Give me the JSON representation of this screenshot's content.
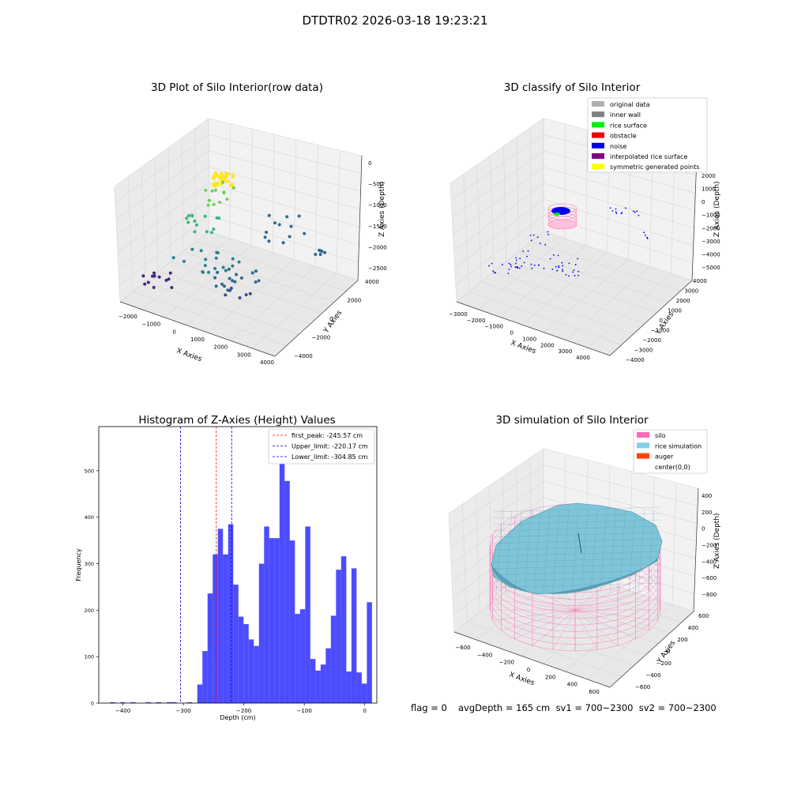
{
  "page": {
    "suptitle": "DTDTR02 2026-03-18 19:23:21"
  },
  "panels": {
    "raw": {
      "title": "3D Plot of Silo Interior(row data)",
      "xlabel": "X Axies",
      "ylabel": "Y Axies",
      "zlabel": "Z Axies (Depth)",
      "xticks": [
        "−2000",
        "−1000",
        "0",
        "1000",
        "2000",
        "3000",
        "4000"
      ],
      "yticks": [
        "−4000",
        "−2000",
        "0",
        "2000",
        "4000"
      ],
      "zticks": [
        "0",
        "−500",
        "−1000",
        "−1500",
        "−2000",
        "−2500"
      ]
    },
    "classify": {
      "title": "3D classify of Silo Interior",
      "xlabel": "X Axies",
      "ylabel": "Y Axies",
      "zlabel": "Z Axies (Depth)",
      "xticks": [
        "−3000",
        "−2000",
        "−1000",
        "0",
        "1000",
        "2000",
        "3000",
        "4000"
      ],
      "yticks": [
        "−4000",
        "−3000",
        "−2000",
        "−1000",
        "0",
        "1000",
        "2000",
        "3000",
        "4000"
      ],
      "zticks": [
        "2000",
        "1000",
        "0",
        "−1000",
        "−2000",
        "−3000",
        "−4000",
        "−5000"
      ],
      "legend": [
        {
          "label": "original data",
          "color": "#b0b0b0"
        },
        {
          "label": "inner wall",
          "color": "#808080"
        },
        {
          "label": "rice surface",
          "color": "#00ee00"
        },
        {
          "label": "obstacle",
          "color": "#ee0000"
        },
        {
          "label": "noise",
          "color": "#0000ee"
        },
        {
          "label": "interpolated rice surface",
          "color": "#800080"
        },
        {
          "label": "symmetric generated points",
          "color": "#ffff00"
        }
      ]
    },
    "simulation": {
      "title": "3D simulation of Silo Interior",
      "xlabel": "X Axies",
      "ylabel": "Y Axies",
      "zlabel": "Z Axies (Depth)",
      "xticks": [
        "−600",
        "−400",
        "−200",
        "0",
        "200",
        "400",
        "600"
      ],
      "yticks": [
        "−600",
        "−400",
        "−200",
        "0",
        "200",
        "400",
        "600"
      ],
      "zticks": [
        "400",
        "200",
        "0",
        "−200",
        "−400",
        "−600",
        "−800"
      ],
      "legend": [
        {
          "label": "silo",
          "color": "#ff69b4"
        },
        {
          "label": "rice simulation",
          "color": "#87ceeb"
        },
        {
          "label": "auger",
          "color": "#ff4500"
        },
        {
          "label": "center(0,0)",
          "color": ""
        }
      ]
    }
  },
  "chart_data": {
    "type": "bar",
    "title": "Histogram of Z-Axies (Height) Values",
    "xlabel": "Depth (cm)",
    "ylabel": "Frequency",
    "xlim": [
      -440,
      20
    ],
    "ylim": [
      0,
      595
    ],
    "xticks": [
      -400,
      -300,
      -200,
      -100,
      0
    ],
    "xtick_labels": [
      "−400",
      "−300",
      "−200",
      "−100",
      "0"
    ],
    "yticks": [
      0,
      100,
      200,
      300,
      400,
      500
    ],
    "bin_width": 8.5,
    "bin_edges_start": -430,
    "values": [
      0,
      2,
      0,
      2,
      0,
      2,
      0,
      0,
      2,
      0,
      2,
      0,
      2,
      2,
      0,
      0,
      2,
      0,
      40,
      112,
      236,
      320,
      375,
      320,
      385,
      255,
      186,
      170,
      137,
      123,
      300,
      380,
      355,
      355,
      566,
      478,
      350,
      192,
      202,
      380,
      95,
      70,
      83,
      118,
      188,
      287,
      316,
      68,
      290,
      66,
      42,
      217
    ],
    "color": "#0000ff",
    "lines": [
      {
        "label": "first_peak: -245.57 cm",
        "x": -245.57,
        "color": "#ff0000"
      },
      {
        "label": "Upper_limit: -220.17 cm",
        "x": -220.17,
        "color": "#0000cc"
      },
      {
        "label": "Lower_limit: -304.85 cm",
        "x": -304.85,
        "color": "#0000cc"
      }
    ]
  },
  "footer": {
    "flag": "flag = 0",
    "stats": "avgDepth = 165 cm  sv1 = 700~2300  sv2 = 700~2300"
  }
}
